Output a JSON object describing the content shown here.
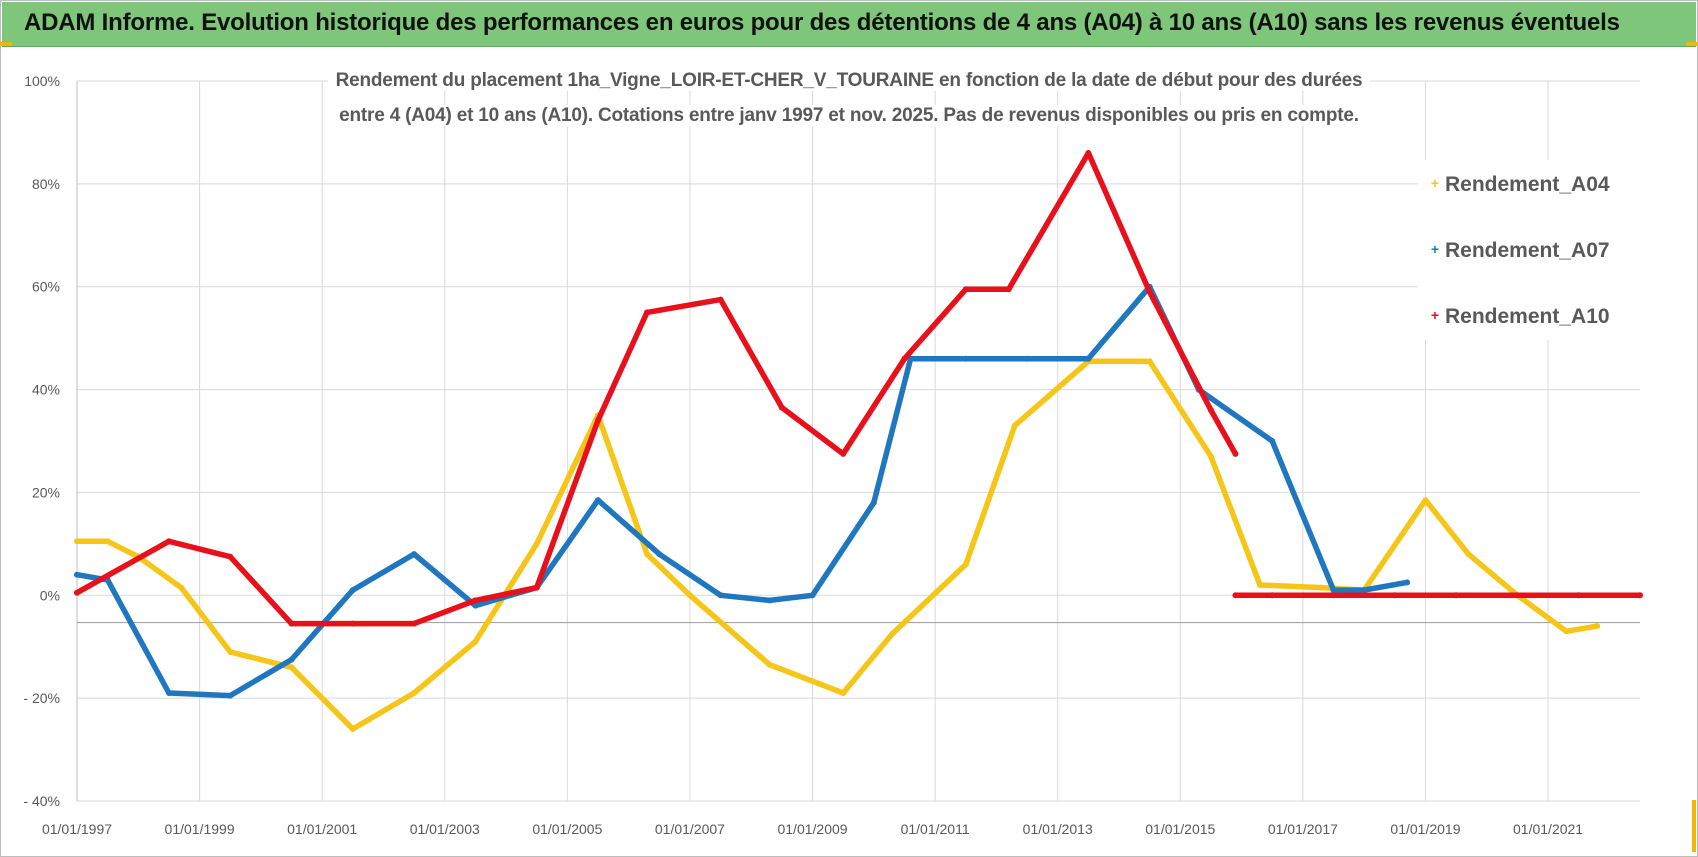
{
  "header": {
    "title": "ADAM Informe. Evolution historique des performances en euros pour des détentions de 4 ans (A04) à 10 ans (A10) sans les revenus éventuels"
  },
  "chart_data": {
    "type": "scatter",
    "title_line1": "Rendement du placement 1ha_Vigne_LOIR-ET-CHER_V_TOURAINE en fonction de la date de début pour des durées",
    "title_line2": "entre 4 (A04) et 10 ans (A10).  Cotations entre janv 1997 et nov. 2025. Pas de revenus disponibles ou pris en compte.",
    "xlabel": "",
    "ylabel": "",
    "xlim": [
      1997.0,
      2022.5
    ],
    "ylim": [
      -40,
      100
    ],
    "x_ticks": [
      "01/01/1997",
      "01/01/1999",
      "01/01/2001",
      "01/01/2003",
      "01/01/2005",
      "01/01/2007",
      "01/01/2009",
      "01/01/2011",
      "01/01/2013",
      "01/01/2015",
      "01/01/2017",
      "01/01/2019",
      "01/01/2021"
    ],
    "x_tick_values": [
      1997,
      1999,
      2001,
      2003,
      2005,
      2007,
      2009,
      2011,
      2013,
      2015,
      2017,
      2019,
      2021
    ],
    "y_ticks": [
      "100%",
      "80%",
      "60%",
      "40%",
      "20%",
      "0%",
      "- 20%",
      "- 40%"
    ],
    "y_tick_values": [
      100,
      80,
      60,
      40,
      20,
      0,
      -20,
      -40
    ],
    "grid": true,
    "legend_position": "right",
    "series": [
      {
        "name": "Rendement_A04",
        "color": "#f5c518",
        "x": [
          1997.0,
          1997.5,
          1998.0,
          1998.7,
          1999.5,
          2000.5,
          2001.5,
          2002.5,
          2003.5,
          2004.5,
          2005.5,
          2006.3,
          2007.0,
          2008.3,
          2009.5,
          2010.3,
          2011.5,
          2012.3,
          2013.5,
          2014.5,
          2015.5,
          2016.3,
          2017.3,
          2018.0,
          2019.0,
          2019.7,
          2020.5,
          2021.3,
          2021.8
        ],
        "y": [
          10.5,
          10.5,
          7.5,
          1.5,
          -11,
          -14,
          -26,
          -19,
          -9,
          10,
          35,
          8,
          0,
          -13.5,
          -19,
          -7.5,
          6,
          33,
          45.5,
          45.5,
          27,
          2,
          1.5,
          1,
          18.5,
          8,
          0,
          -7,
          -6
        ]
      },
      {
        "name": "Rendement_A07",
        "color": "#1f77c0",
        "x": [
          1997.0,
          1997.5,
          1998.5,
          1999.5,
          2000.5,
          2001.5,
          2002.5,
          2003.5,
          2004.5,
          2005.5,
          2006.5,
          2007.5,
          2008.3,
          2009.0,
          2010.0,
          2010.6,
          2011.5,
          2012.5,
          2013.5,
          2014.5,
          2015.3,
          2016.5,
          2017.5,
          2018.0,
          2018.7
        ],
        "y": [
          4,
          3,
          -19,
          -19.5,
          -12.5,
          1,
          8,
          -2,
          1.5,
          18.5,
          8,
          0,
          -1,
          0,
          18,
          46,
          46,
          46,
          46,
          60,
          40,
          30,
          1,
          1,
          2.5
        ]
      },
      {
        "name": "Rendement_A10",
        "color": "#e8101a",
        "x": [
          1997.0,
          1998.5,
          1999.5,
          2000.5,
          2001.5,
          2002.5,
          2003.5,
          2004.5,
          2005.5,
          2006.3,
          2007.5,
          2008.5,
          2009.5,
          2010.5,
          2011.5,
          2012.2,
          2013.5,
          2014.5,
          2015.5,
          2015.9,
          2015.9,
          2016.5,
          2017.5,
          2018.5,
          2019.5,
          2020.5,
          2021.5,
          2022.5
        ],
        "y": [
          0.5,
          10.5,
          7.5,
          -5.5,
          -5.5,
          -5.5,
          -1,
          1.5,
          34,
          55,
          57.5,
          36.5,
          27.5,
          46,
          59.5,
          59.5,
          86,
          59,
          36,
          27.5,
          0,
          0,
          0,
          0,
          0,
          0,
          0,
          0
        ],
        "segments_break_after_index": 19
      }
    ]
  }
}
